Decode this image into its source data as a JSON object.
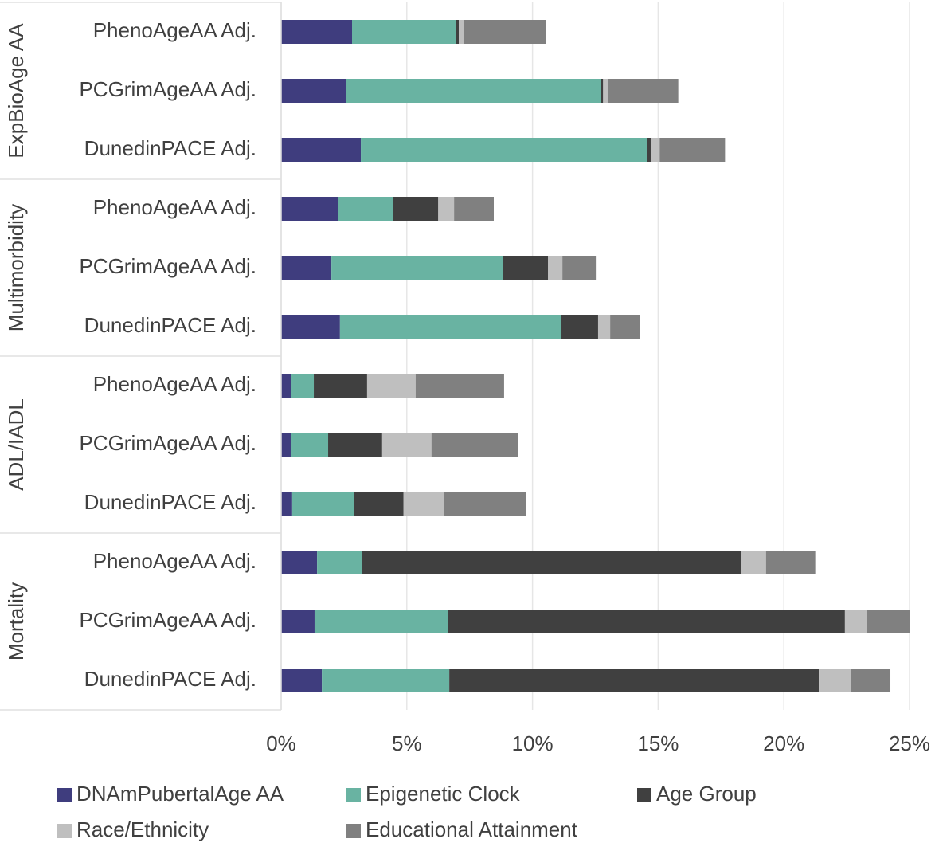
{
  "chart_data": {
    "type": "stacked_barh",
    "groups": [
      {
        "name": "ExpBioAge AA",
        "categories": [
          "PhenoAgeAA Adj.",
          "PCGrimAgeAA Adj.",
          "DunedinPACE Adj."
        ]
      },
      {
        "name": "Multimorbidity",
        "categories": [
          "PhenoAgeAA Adj.",
          "PCGrimAgeAA Adj.",
          "DunedinPACE Adj."
        ]
      },
      {
        "name": "ADL/IADL",
        "categories": [
          "PhenoAgeAA Adj.",
          "PCGrimAgeAA Adj.",
          "DunedinPACE Adj."
        ]
      },
      {
        "name": "Mortality",
        "categories": [
          "PhenoAgeAA Adj.",
          "PCGrimAgeAA Adj.",
          "DunedinPACE Adj."
        ]
      }
    ],
    "series": [
      {
        "name": "DNAmPubertalAge AA",
        "color": "#3f3d7e",
        "values": [
          2.82,
          2.57,
          3.17,
          2.25,
          2.0,
          2.34,
          0.41,
          0.38,
          0.44,
          1.43,
          1.33,
          1.62
        ]
      },
      {
        "name": "Epigenetic Clock",
        "color": "#69b3a2",
        "values": [
          4.15,
          10.14,
          11.38,
          2.19,
          6.81,
          8.81,
          0.89,
          1.49,
          2.47,
          1.77,
          5.32,
          5.07
        ]
      },
      {
        "name": "Age Group",
        "color": "#404040",
        "values": [
          0.1,
          0.1,
          0.16,
          1.81,
          1.81,
          1.46,
          2.12,
          2.15,
          1.96,
          15.11,
          15.78,
          14.7
        ]
      },
      {
        "name": "Race/Ethnicity",
        "color": "#bfbfbf",
        "values": [
          0.2,
          0.2,
          0.35,
          0.63,
          0.57,
          0.48,
          1.93,
          1.96,
          1.62,
          0.98,
          0.89,
          1.27
        ]
      },
      {
        "name": "Educational Attainment",
        "color": "#808080",
        "values": [
          3.26,
          2.79,
          2.6,
          1.58,
          1.33,
          1.17,
          3.52,
          3.45,
          3.26,
          1.96,
          1.68,
          1.58
        ]
      }
    ],
    "xlim": [
      0,
      25
    ],
    "xticks": [
      {
        "value": 0,
        "label": "0%"
      },
      {
        "value": 5,
        "label": "5%"
      },
      {
        "value": 10,
        "label": "10%"
      },
      {
        "value": 15,
        "label": "15%"
      },
      {
        "value": 20,
        "label": "20%"
      },
      {
        "value": 25,
        "label": "25%"
      }
    ],
    "grid": true
  }
}
